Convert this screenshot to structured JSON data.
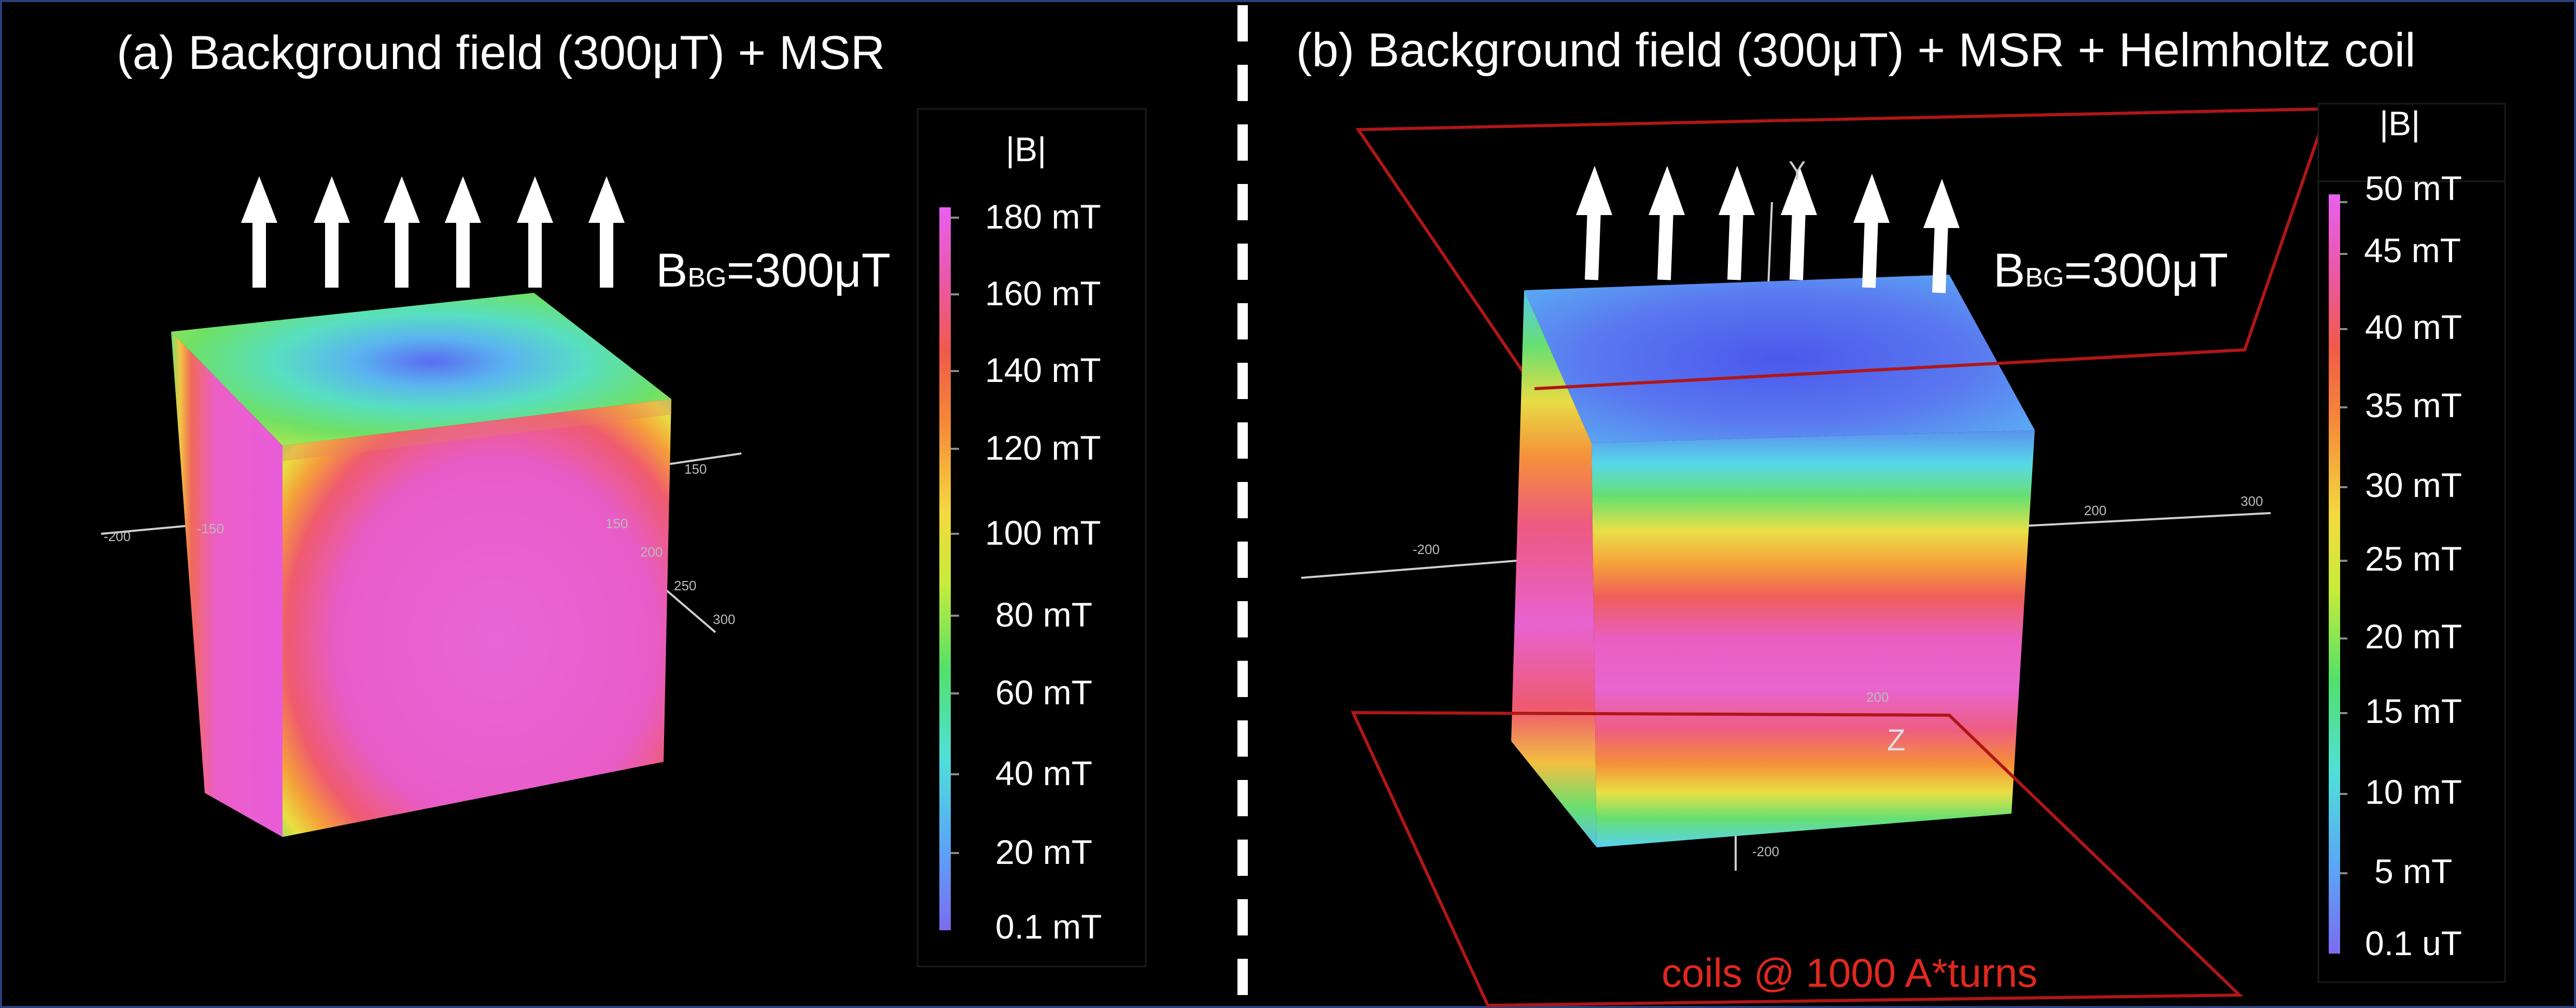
{
  "panel_a": {
    "title": "(a) Background field (300μT) + MSR",
    "bbg_main": "B",
    "bbg_sub": "BG",
    "bbg_value": "=300μT",
    "colorbar": {
      "title": "|B|",
      "ticks": [
        "180 mT",
        "160 mT",
        "140 mT",
        "120 mT",
        "100 mT",
        "80 mT",
        "60 mT",
        "40 mT",
        "20 mT",
        "0.1 mT"
      ]
    },
    "axis_numbers": [
      "-200",
      "-150",
      "150",
      "200",
      "250",
      "300",
      "150"
    ]
  },
  "panel_b": {
    "title": "(b) Background field (300μT) + MSR + Helmholtz coil",
    "bbg_main": "B",
    "bbg_sub": "BG",
    "bbg_value": "=300μT",
    "colorbar": {
      "title": "|B|",
      "ticks": [
        "50 mT",
        "45 mT",
        "40 mT",
        "35 mT",
        "30 mT",
        "25 mT",
        "20 mT",
        "15 mT",
        "10 mT",
        "5  mT",
        "0.1  uT"
      ]
    },
    "coil_label": "coils @ 1000 A*turns",
    "axis_numbers": [
      "-200",
      "200",
      "300",
      "200",
      "-200"
    ],
    "axis_letters": [
      "Y",
      "Z"
    ]
  },
  "colors": {
    "background": "#000000",
    "coil": "#c01818",
    "coil_label": "#e0281e",
    "divider": "#ffffff",
    "frame": "#2a3f7a"
  }
}
